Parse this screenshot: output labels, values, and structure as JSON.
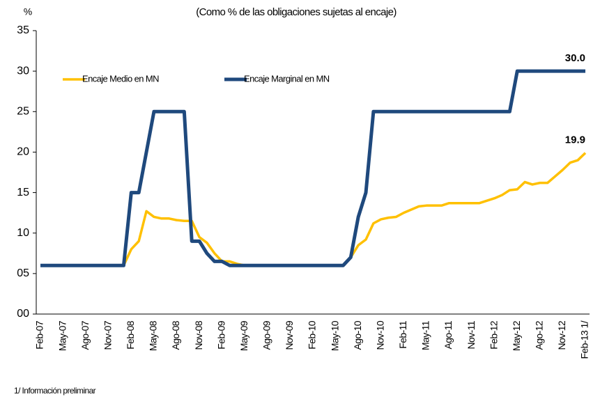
{
  "chart_data": {
    "type": "line",
    "subtitle": "(Como % de las obligaciones sujetas al encaje)",
    "y_label": "%",
    "footnote": "1/ Información preliminar",
    "categories": [
      "Feb-07",
      null,
      null,
      "May-07",
      null,
      null,
      "Ago-07",
      null,
      null,
      "Nov-07",
      null,
      null,
      "Feb-08",
      null,
      null,
      "May-08",
      null,
      null,
      "Ago-08",
      null,
      null,
      "Nov-08",
      null,
      null,
      "Feb-09",
      null,
      null,
      "May-09",
      null,
      null,
      "Ago-09",
      null,
      null,
      "Nov-09",
      null,
      null,
      "Feb-10",
      null,
      null,
      "May-10",
      null,
      null,
      "Ago-10",
      null,
      null,
      "Nov-10",
      null,
      null,
      "Feb-11",
      null,
      null,
      "May-11",
      null,
      null,
      "Ago-11",
      null,
      null,
      "Nov-11",
      null,
      null,
      "Feb-12",
      null,
      null,
      "May-12",
      null,
      null,
      "Ago-12",
      null,
      null,
      "Nov-12",
      null,
      null,
      "Feb-13 1/"
    ],
    "series": [
      {
        "name": "Encaje Medio en MN",
        "color": "#ffc000",
        "values": [
          6,
          6,
          6,
          6,
          6,
          6,
          6,
          6,
          6,
          6,
          6,
          6,
          8,
          9,
          12.7,
          12,
          11.8,
          11.8,
          11.6,
          11.5,
          11.5,
          9.5,
          8.8,
          7.5,
          6.5,
          6.5,
          6.2,
          6,
          6,
          6,
          6,
          6,
          6,
          6,
          6,
          6,
          6,
          6,
          6,
          6,
          6,
          7,
          8.5,
          9.2,
          11.2,
          11.7,
          11.9,
          12,
          12.5,
          12.9,
          13.3,
          13.4,
          13.4,
          13.4,
          13.7,
          13.7,
          13.7,
          13.7,
          13.7,
          14,
          14.3,
          14.7,
          15.3,
          15.4,
          16.3,
          16,
          16.2,
          16.2,
          17,
          17.8,
          18.7,
          19,
          19.9
        ],
        "value_labels": [
          null,
          null,
          null,
          null,
          null,
          null,
          null,
          null,
          null,
          null,
          null,
          null,
          null,
          null,
          null,
          null,
          null,
          null,
          null,
          null,
          null,
          null,
          null,
          null,
          null,
          null,
          null,
          null,
          null,
          null,
          null,
          null,
          null,
          null,
          null,
          null,
          null,
          null,
          null,
          null,
          null,
          null,
          null,
          null,
          null,
          null,
          null,
          null,
          null,
          null,
          null,
          null,
          null,
          null,
          null,
          null,
          null,
          null,
          null,
          null,
          null,
          null,
          null,
          null,
          null,
          null,
          null,
          null,
          null,
          null,
          null,
          null,
          "19.9"
        ]
      },
      {
        "name": "Encaje Marginal en MN",
        "color": "#1f497d",
        "values": [
          6,
          6,
          6,
          6,
          6,
          6,
          6,
          6,
          6,
          6,
          6,
          6,
          15,
          15,
          20,
          25,
          25,
          25,
          25,
          25,
          9,
          9,
          7.5,
          6.5,
          6.5,
          6,
          6,
          6,
          6,
          6,
          6,
          6,
          6,
          6,
          6,
          6,
          6,
          6,
          6,
          6,
          6,
          7,
          12,
          15,
          25,
          25,
          25,
          25,
          25,
          25,
          25,
          25,
          25,
          25,
          25,
          25,
          25,
          25,
          25,
          25,
          25,
          25,
          25,
          30,
          30,
          30,
          30,
          30,
          30,
          30,
          30,
          30,
          30
        ],
        "value_labels": [
          null,
          null,
          null,
          null,
          null,
          null,
          null,
          null,
          null,
          null,
          null,
          null,
          null,
          null,
          null,
          null,
          null,
          null,
          null,
          null,
          null,
          null,
          null,
          null,
          null,
          null,
          null,
          null,
          null,
          null,
          null,
          null,
          null,
          null,
          null,
          null,
          null,
          null,
          null,
          null,
          null,
          null,
          null,
          null,
          null,
          null,
          null,
          null,
          null,
          null,
          null,
          null,
          null,
          null,
          null,
          null,
          null,
          null,
          null,
          null,
          null,
          null,
          null,
          null,
          null,
          null,
          null,
          null,
          null,
          null,
          null,
          null,
          "30.0"
        ]
      }
    ],
    "ylim": [
      0,
      35
    ],
    "yticks": [
      {
        "value": 0,
        "label": "00"
      },
      {
        "value": 5,
        "label": "05"
      },
      10,
      15,
      20,
      25,
      30,
      35
    ],
    "grid": false,
    "legend": "top-left"
  }
}
